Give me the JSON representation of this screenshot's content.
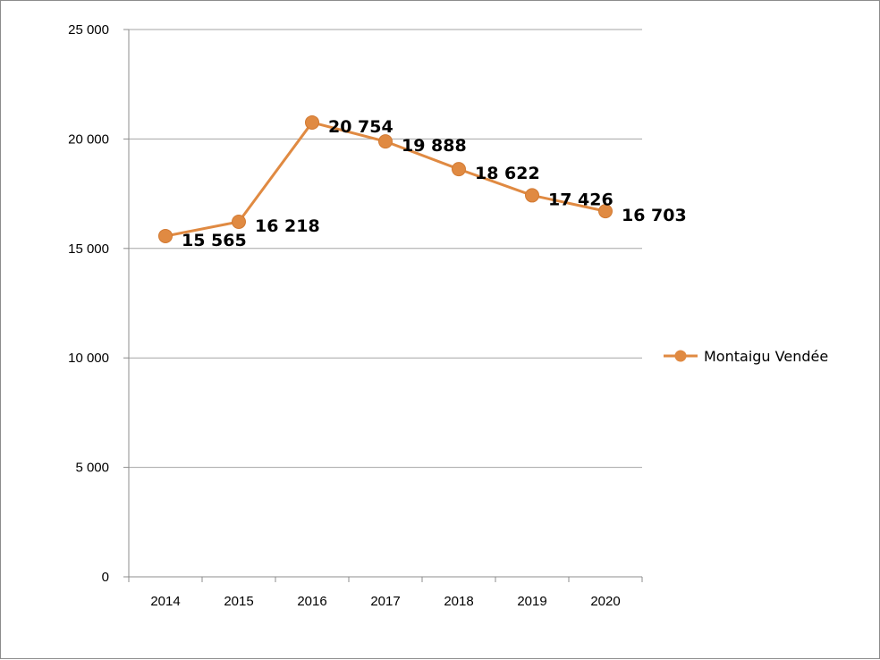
{
  "chart_data": {
    "type": "line",
    "title": "",
    "xlabel": "",
    "ylabel": "",
    "categories": [
      "2014",
      "2015",
      "2016",
      "2017",
      "2018",
      "2019",
      "2020"
    ],
    "series": [
      {
        "name": "Montaigu Vendée",
        "values": [
          15565,
          16218,
          20754,
          19888,
          18622,
          17426,
          16703
        ],
        "data_labels": [
          "15 565",
          "16 218",
          "20 754",
          "19 888",
          "18 622",
          "17 426",
          "16 703"
        ],
        "color": "#e08a42"
      }
    ],
    "ylim": [
      0,
      25000
    ],
    "yticks": [
      0,
      5000,
      10000,
      15000,
      20000,
      25000
    ],
    "ytick_labels": [
      "0",
      "5 000",
      "10 000",
      "15 000",
      "20 000",
      "25 000"
    ],
    "grid": "horizontal",
    "legend": "right"
  }
}
